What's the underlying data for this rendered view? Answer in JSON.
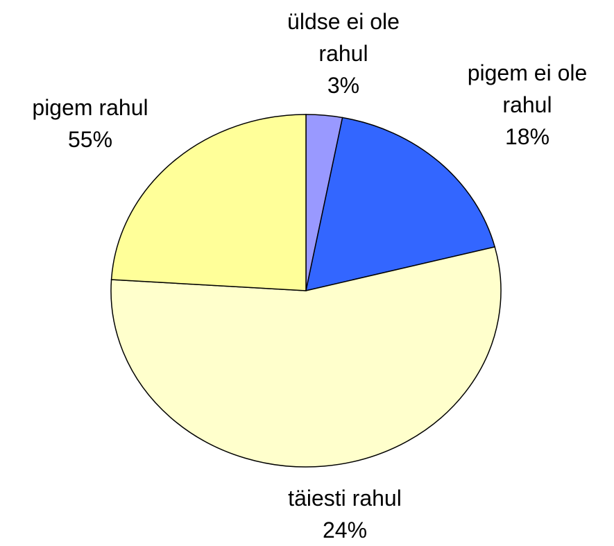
{
  "chart_data": {
    "type": "pie",
    "categories": [
      "üldse ei ole rahul",
      "pigem ei ole rahul",
      "pigem rahul",
      "täiesti rahul"
    ],
    "values": [
      3,
      18,
      55,
      24
    ],
    "value_labels": [
      "3%",
      "18%",
      "55%",
      "24%"
    ],
    "colors": [
      "#9999ff",
      "#3366ff",
      "#ffffcc",
      "#ffff99"
    ]
  }
}
